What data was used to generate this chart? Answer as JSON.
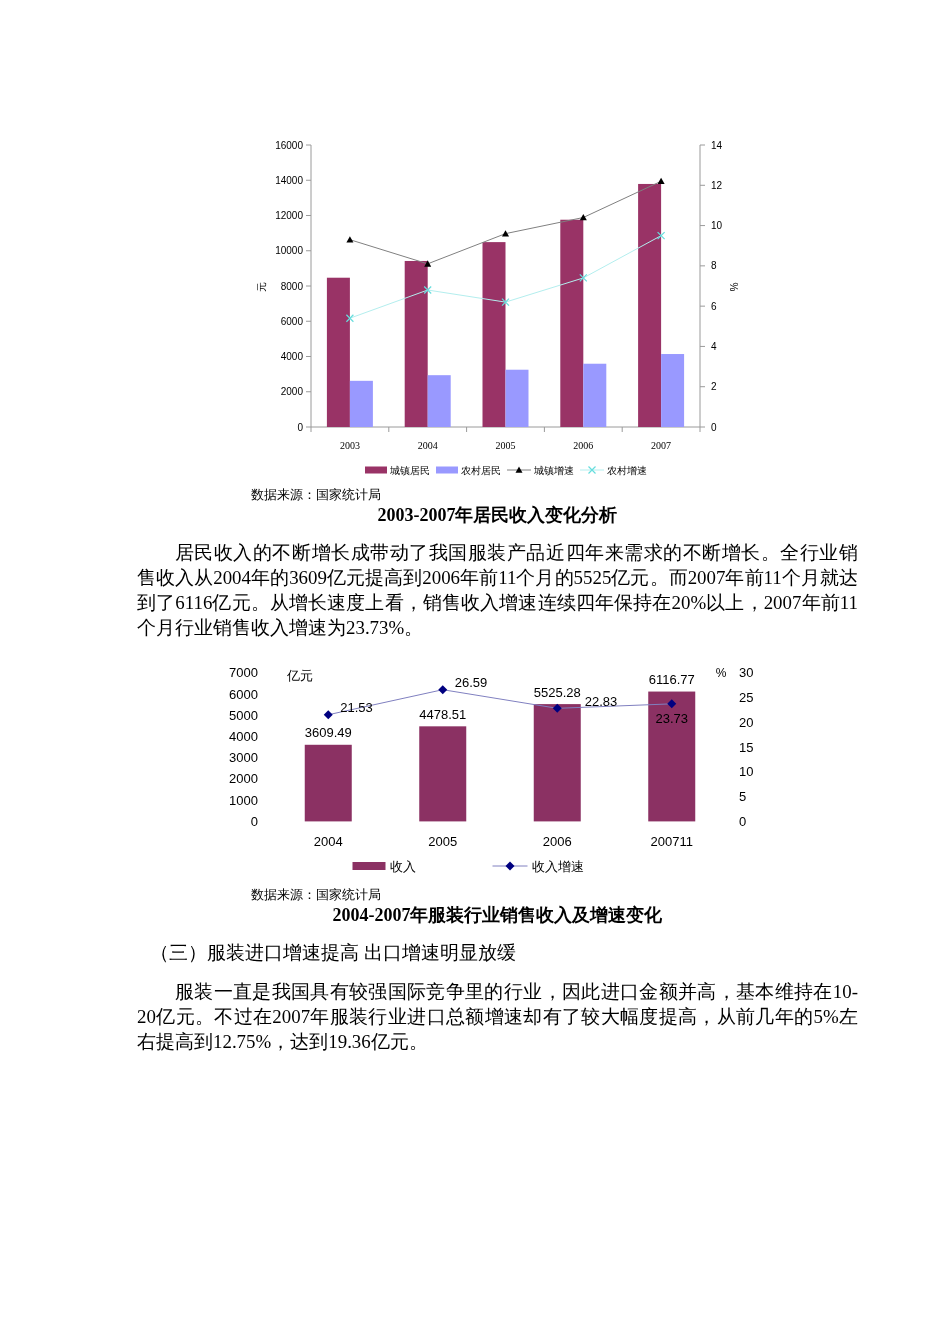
{
  "chart_data": [
    {
      "type": "bar",
      "title": "2003-2007年居民收入变化分析",
      "ylabel": "元",
      "y2label": "%",
      "categories": [
        "2003",
        "2004",
        "2005",
        "2006",
        "2007"
      ],
      "series": [
        {
          "name": "城镇居民",
          "color": "#993366",
          "values": [
            8470,
            9420,
            10490,
            11760,
            13790
          ]
        },
        {
          "name": "农村居民",
          "color": "#9999ff",
          "values": [
            2620,
            2940,
            3250,
            3590,
            4140
          ]
        },
        {
          "name": "城镇增速",
          "type": "line",
          "axis": "y2",
          "color": "#000000",
          "marker": "triangle",
          "values": [
            9.3,
            8.1,
            9.6,
            10.4,
            12.2
          ]
        },
        {
          "name": "农村增速",
          "type": "line",
          "axis": "y2",
          "color": "#66dddd",
          "marker": "cross",
          "values": [
            5.4,
            6.8,
            6.2,
            7.4,
            9.5
          ]
        }
      ],
      "ylim": [
        0,
        16000
      ],
      "yticks": [
        0,
        2000,
        4000,
        6000,
        8000,
        10000,
        12000,
        14000,
        16000
      ],
      "y2lim": [
        0,
        14
      ],
      "y2ticks": [
        0,
        2,
        4,
        6,
        8,
        10,
        12,
        14
      ],
      "legend": "bottom",
      "annotations": [
        "数据来源：国家统计局",
        "居民收入的不断增长成带动了我国服装产品近四年来需求的不断增长。全行业销售收入从2004年的3609亿元提高到2006年前11个月的5525亿元。而2007年前11个月就达到了6116亿元。从增长速度上看，销售收入增速连续四年保持在20%以上，2007年前11个月行业销售收入增速为23.73%。"
      ]
    },
    {
      "type": "bar",
      "title": "2004-2007年服装行业销售收入及增速变化",
      "ylabel": "亿元",
      "y2label": "%",
      "categories": [
        "2004",
        "2005",
        "2006",
        "200711"
      ],
      "series": [
        {
          "name": "收入",
          "color": "#8b3163",
          "values": [
            3609.49,
            4478.51,
            5525.28,
            6116.77
          ]
        },
        {
          "name": "收入增速",
          "type": "line",
          "axis": "y2",
          "color": "#000080",
          "marker": "diamond",
          "values": [
            21.53,
            26.59,
            22.83,
            23.73
          ]
        }
      ],
      "ylim": [
        0,
        7000
      ],
      "yticks": [
        0,
        1000,
        2000,
        3000,
        4000,
        5000,
        6000,
        7000
      ],
      "y2lim": [
        0,
        30
      ],
      "y2ticks": [
        0,
        5,
        10,
        15,
        20,
        25,
        30
      ],
      "data_labels": true,
      "legend": "bottom",
      "annotations": [
        "数据来源：国家统计局",
        "（三）服装进口增速提高 出口增速明显放缓",
        "服装一直是我国具有较强国际竞争里的行业，因此进口金额并高，基本维持在10-20亿元。不过在2007年服装行业进口总额增速却有了较大幅度提高，从前几年的5%左右提高到12.75%，达到19.36亿元。"
      ]
    }
  ]
}
